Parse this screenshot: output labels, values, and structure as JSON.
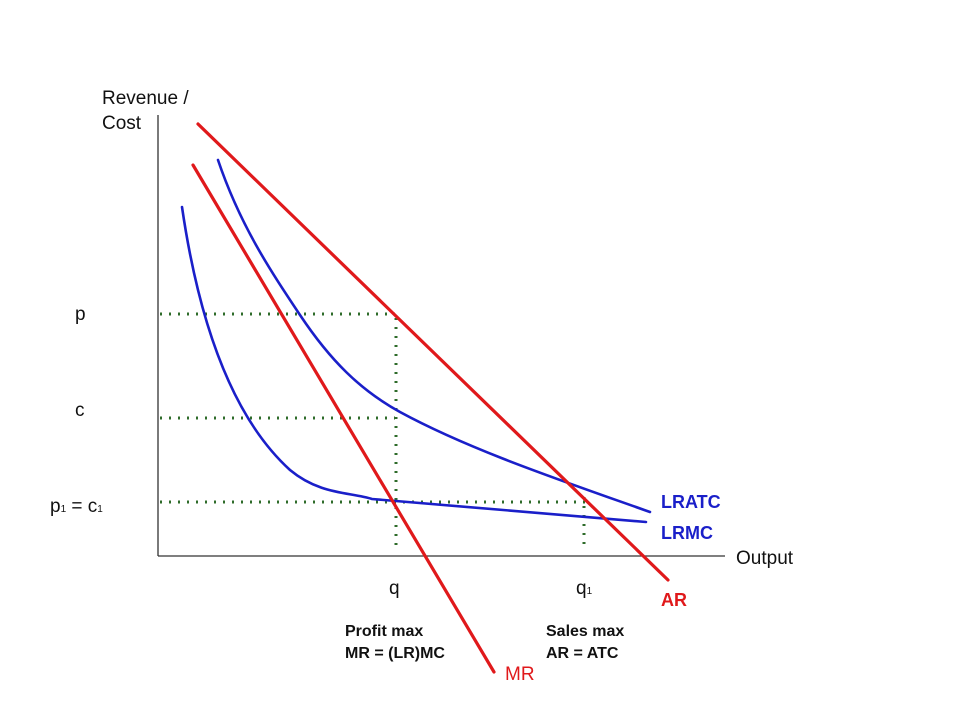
{
  "diagram": {
    "axes": {
      "y_title_line1": "Revenue /",
      "y_title_line2": "Cost",
      "x_title": "Output"
    },
    "y_ticks": {
      "p": "p",
      "c": "c",
      "p1c1_a": "p",
      "p1c1_sub1": "1",
      "p1c1_mid": " = c",
      "p1c1_sub2": "1"
    },
    "x_ticks": {
      "q": "q",
      "q1_base": "q",
      "q1_sub": "1"
    },
    "curves": {
      "lratc": "LRATC",
      "lrmc": "LRMC",
      "ar": "AR",
      "mr": "MR"
    },
    "annotations": {
      "profit_line1": "Profit max",
      "profit_line2": "MR = (LR)MC",
      "sales_line1": "Sales max",
      "sales_line2": "AR = ATC"
    },
    "colors": {
      "red_curves": "#e0191b",
      "blue_curves": "#1a1fc9",
      "guides": "#2e6b2a",
      "axes": "#333333"
    }
  }
}
